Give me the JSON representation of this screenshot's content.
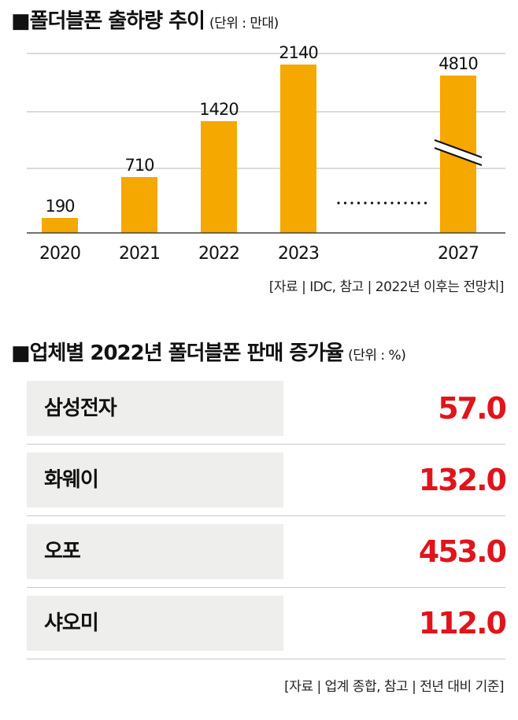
{
  "chart_title": "■폴더블폰 출하량 추이",
  "chart_unit": "(단위 : 만대)",
  "chart_data": {
    "type": "bar",
    "title": "■폴더블폰 출하량 추이",
    "unit": "(단위 : 만대)",
    "categories": [
      "2020",
      "2021",
      "2022",
      "2023",
      "2027"
    ],
    "values": [
      190,
      710,
      1420,
      2140,
      4810
    ],
    "axis_break_before": "2027",
    "bar_color": "#f5a800",
    "grid": true
  },
  "chart_source": "[자료 | IDC, 참고 | 2022년 이후는 전망치]",
  "table_title": "■업체별 2022년 폴더블폰 판매 증가율",
  "table_unit": "(단위 : %)",
  "table_rows": [
    {
      "name": "삼성전자",
      "value": "57.0"
    },
    {
      "name": "화웨이",
      "value": "132.0"
    },
    {
      "name": "오포",
      "value": "453.0"
    },
    {
      "name": "샤오미",
      "value": "112.0"
    }
  ],
  "value_color": "#e0151c",
  "table_source": "[자료 | 업계 종합, 참고 | 전년 대비 기준]"
}
